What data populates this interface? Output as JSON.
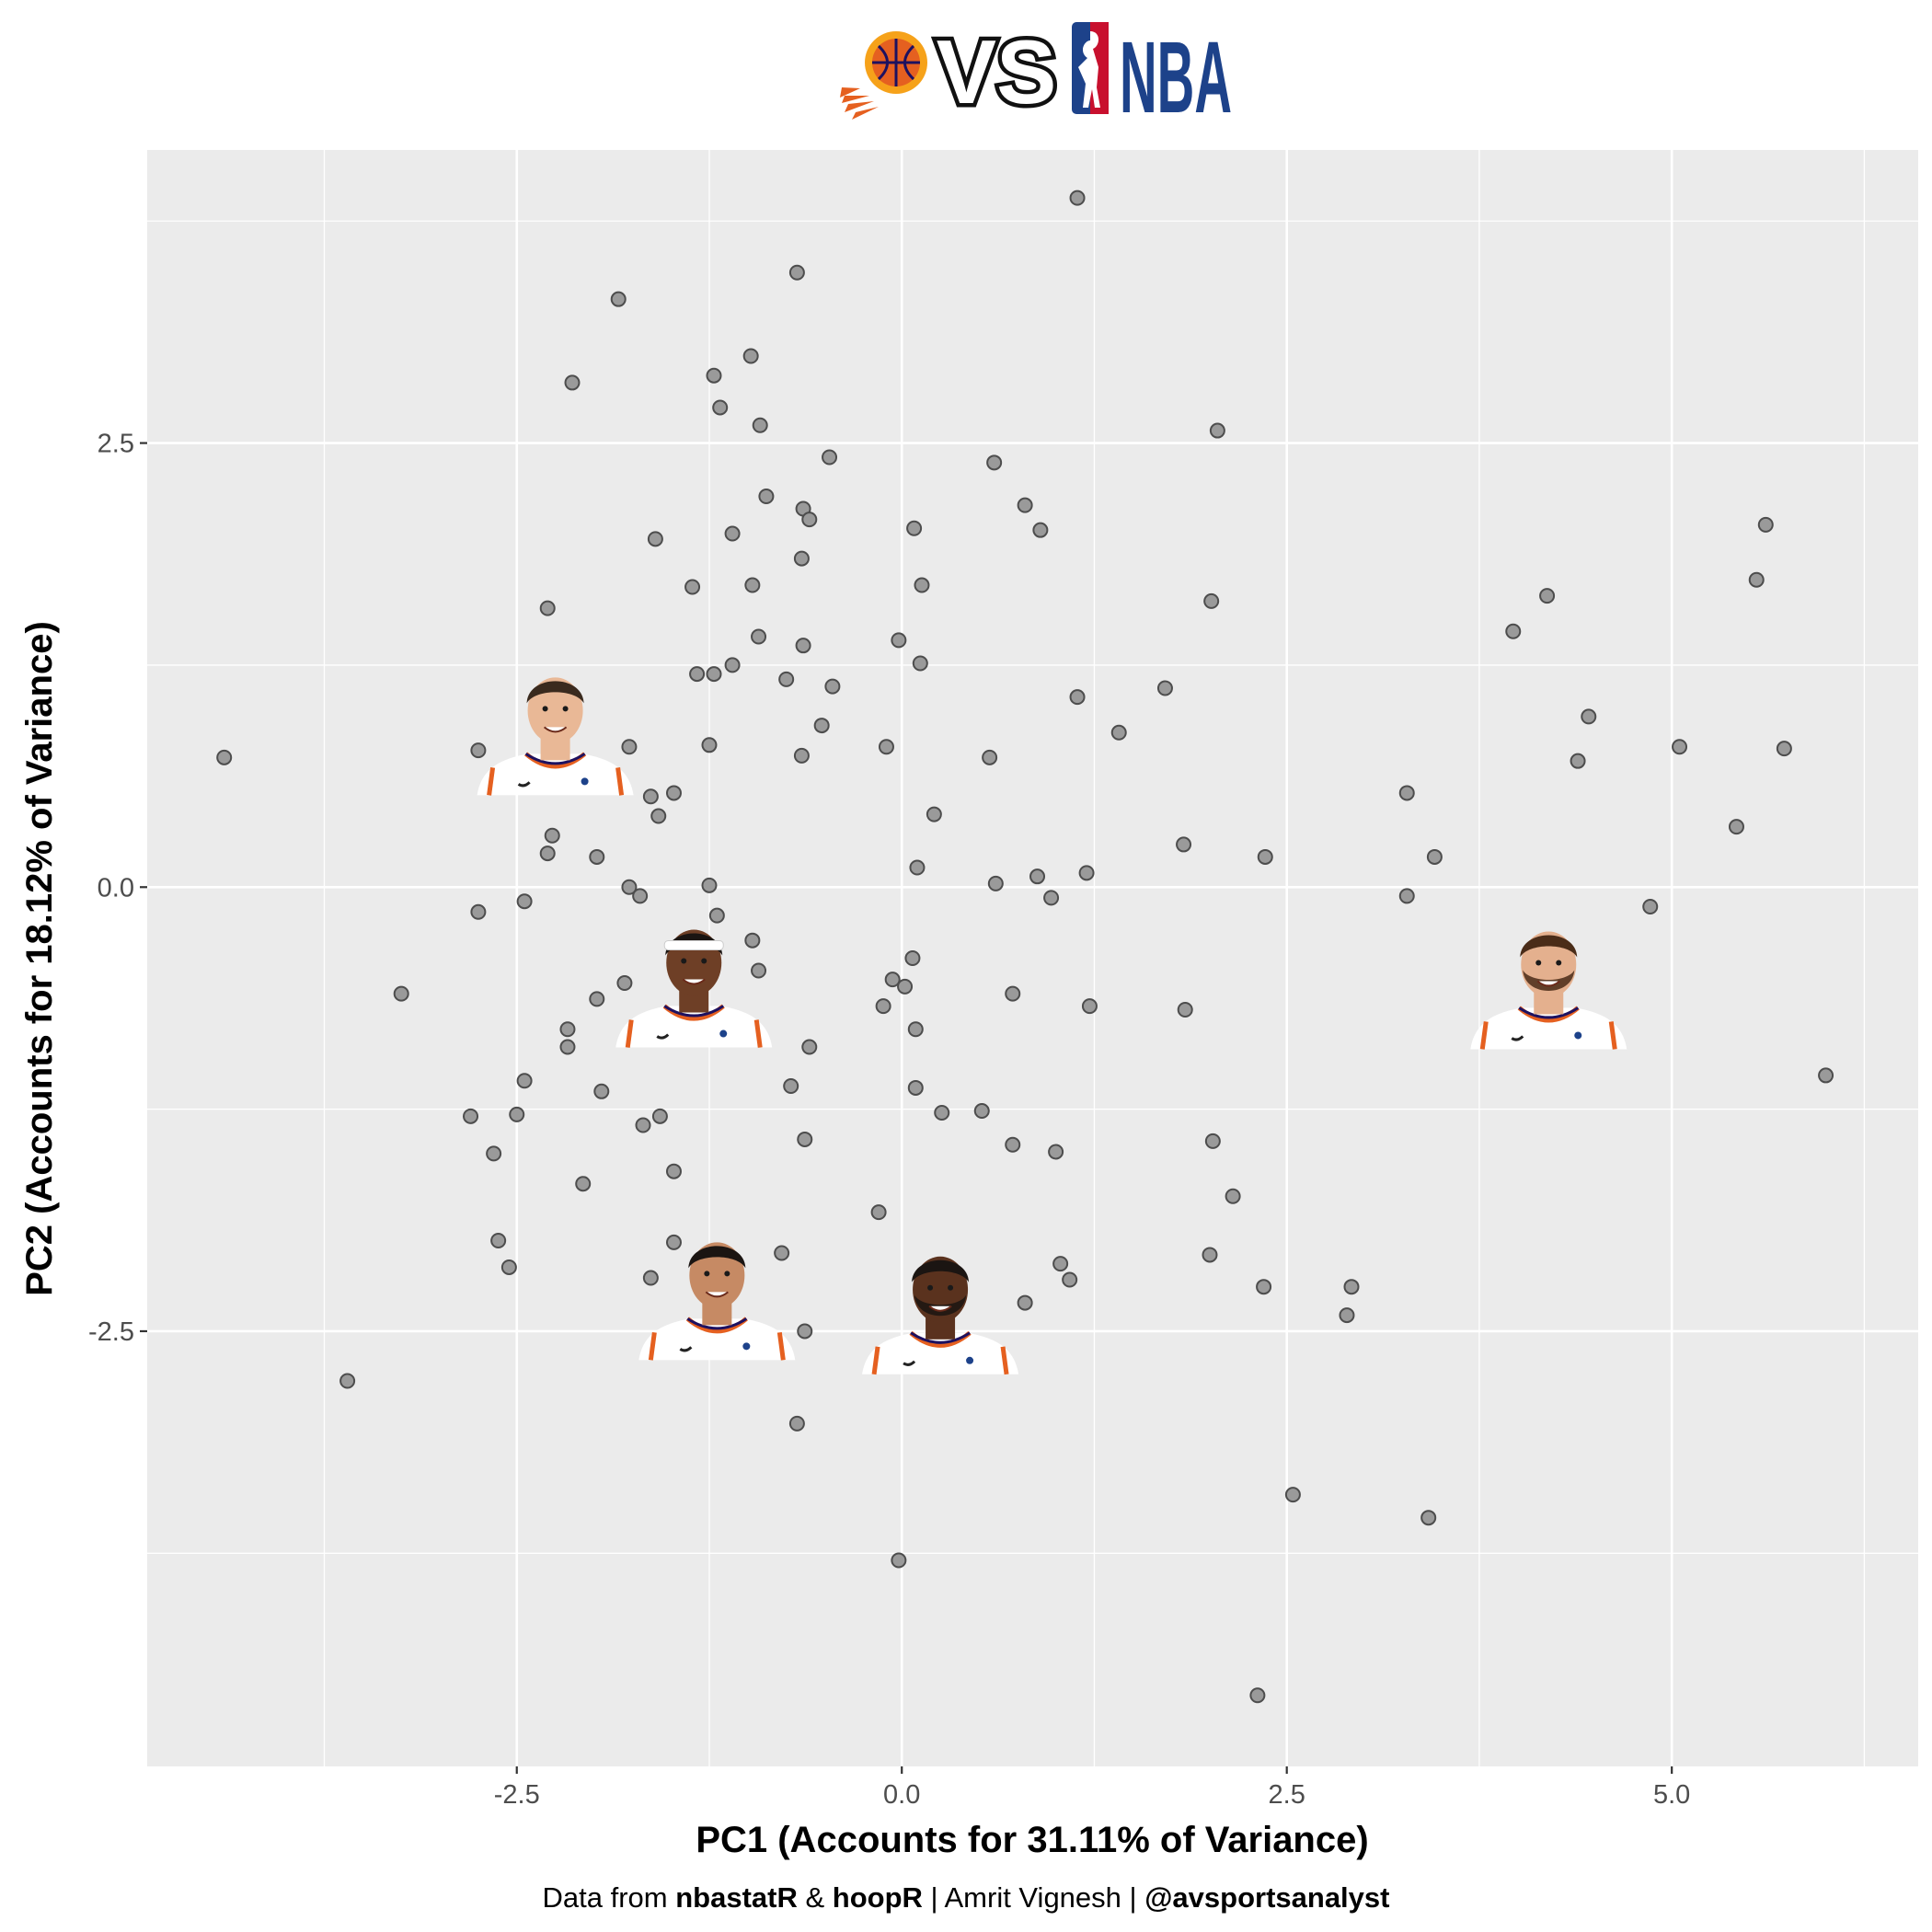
{
  "header": {
    "vs_text": "VS",
    "league_text": "NBA",
    "team_logo_icon": "phoenix-suns-basketball-icon",
    "league_logo_icon": "nba-logo-icon",
    "colors": {
      "suns_orange": "#e56020",
      "suns_purple": "#1d1160",
      "nba_blue": "#1d428a",
      "nba_red": "#c8102e"
    }
  },
  "caption": {
    "prefix": "Data from ",
    "source1": "nbastatR",
    "amp": " & ",
    "source2": "hoopR",
    "sep1": " | ",
    "author": "Amrit Vignesh",
    "sep2": " | ",
    "handle": "@avsportsanalyst"
  },
  "chart_data": {
    "type": "scatter",
    "xlabel": "PC1 (Accounts for 31.11% of Variance)",
    "ylabel": "PC2 (Accounts for 18.12% of Variance)",
    "xlim": [
      -4.9,
      6.6
    ],
    "ylim": [
      -4.95,
      4.15
    ],
    "x_ticks": [
      -2.5,
      0.0,
      2.5,
      5.0
    ],
    "x_tick_labels": [
      "-2.5",
      "0.0",
      "2.5",
      "5.0"
    ],
    "y_ticks": [
      -2.5,
      0.0,
      2.5
    ],
    "y_tick_labels": [
      "-2.5",
      "0.0",
      "2.5"
    ],
    "grid": true,
    "panel_background": "#ebebeb",
    "point_color": "#9a9a9a",
    "points": [
      [
        -4.4,
        0.73
      ],
      [
        -3.6,
        -2.78
      ],
      [
        -3.25,
        -0.6
      ],
      [
        -2.8,
        -1.29
      ],
      [
        -2.75,
        0.77
      ],
      [
        -2.75,
        -0.14
      ],
      [
        -2.65,
        -1.5
      ],
      [
        -2.62,
        -1.99
      ],
      [
        -2.55,
        -2.14
      ],
      [
        -2.5,
        -1.28
      ],
      [
        -2.45,
        -1.09
      ],
      [
        -2.45,
        -0.08
      ],
      [
        -2.3,
        1.57
      ],
      [
        -2.3,
        0.19
      ],
      [
        -2.27,
        0.29
      ],
      [
        -2.17,
        -0.8
      ],
      [
        -2.17,
        -0.9
      ],
      [
        -2.14,
        2.84
      ],
      [
        -2.07,
        -1.67
      ],
      [
        -1.98,
        0.17
      ],
      [
        -1.98,
        -0.63
      ],
      [
        -1.95,
        -1.15
      ],
      [
        -1.84,
        3.31
      ],
      [
        -1.8,
        -0.54
      ],
      [
        -1.77,
        0.79
      ],
      [
        -1.77,
        0.0
      ],
      [
        -1.7,
        -0.05
      ],
      [
        -1.68,
        -1.34
      ],
      [
        -1.63,
        0.51
      ],
      [
        -1.63,
        -2.2
      ],
      [
        -1.6,
        1.96
      ],
      [
        -1.58,
        0.4
      ],
      [
        -1.57,
        -1.29
      ],
      [
        -1.48,
        0.53
      ],
      [
        -1.48,
        -1.6
      ],
      [
        -1.48,
        -2.0
      ],
      [
        -1.36,
        1.69
      ],
      [
        -1.33,
        1.2
      ],
      [
        -1.25,
        0.8
      ],
      [
        -1.25,
        0.01
      ],
      [
        -1.22,
        2.88
      ],
      [
        -1.22,
        1.2
      ],
      [
        -1.2,
        -0.16
      ],
      [
        -1.18,
        2.7
      ],
      [
        -1.1,
        1.99
      ],
      [
        -1.1,
        1.25
      ],
      [
        -1.1,
        -2.12
      ],
      [
        -0.98,
        2.99
      ],
      [
        -0.97,
        1.7
      ],
      [
        -0.97,
        -0.3
      ],
      [
        -0.93,
        1.41
      ],
      [
        -0.93,
        -0.47
      ],
      [
        -0.92,
        2.6
      ],
      [
        -0.88,
        2.2
      ],
      [
        -0.78,
        -2.06
      ],
      [
        -0.75,
        1.17
      ],
      [
        -0.72,
        -1.12
      ],
      [
        -0.68,
        3.46
      ],
      [
        -0.68,
        -3.02
      ],
      [
        -0.65,
        0.74
      ],
      [
        -0.65,
        1.85
      ],
      [
        -0.64,
        2.13
      ],
      [
        -0.64,
        1.36
      ],
      [
        -0.63,
        -1.42
      ],
      [
        -0.63,
        -2.5
      ],
      [
        -0.6,
        2.07
      ],
      [
        -0.6,
        -0.9
      ],
      [
        -0.52,
        0.91
      ],
      [
        -0.47,
        2.42
      ],
      [
        -0.45,
        1.13
      ],
      [
        -0.15,
        -1.83
      ],
      [
        -0.12,
        -0.67
      ],
      [
        -0.1,
        0.79
      ],
      [
        -0.06,
        -0.52
      ],
      [
        -0.02,
        1.39
      ],
      [
        -0.02,
        -3.79
      ],
      [
        0.02,
        -0.56
      ],
      [
        0.07,
        -0.4
      ],
      [
        0.08,
        2.02
      ],
      [
        0.09,
        -1.13
      ],
      [
        0.09,
        -0.8
      ],
      [
        0.1,
        0.11
      ],
      [
        0.12,
        1.26
      ],
      [
        0.13,
        1.7
      ],
      [
        0.21,
        0.41
      ],
      [
        0.26,
        -1.27
      ],
      [
        0.52,
        -1.26
      ],
      [
        0.57,
        0.73
      ],
      [
        0.6,
        2.39
      ],
      [
        0.61,
        0.02
      ],
      [
        0.72,
        -1.45
      ],
      [
        0.72,
        -0.6
      ],
      [
        0.8,
        -2.34
      ],
      [
        0.8,
        2.15
      ],
      [
        0.88,
        0.06
      ],
      [
        0.9,
        2.01
      ],
      [
        0.97,
        -0.06
      ],
      [
        1.0,
        -1.49
      ],
      [
        1.03,
        -2.12
      ],
      [
        1.09,
        -2.21
      ],
      [
        1.14,
        1.07
      ],
      [
        1.14,
        3.88
      ],
      [
        1.2,
        0.08
      ],
      [
        1.22,
        -0.67
      ],
      [
        1.41,
        0.87
      ],
      [
        1.71,
        1.12
      ],
      [
        1.83,
        0.24
      ],
      [
        1.84,
        -0.69
      ],
      [
        2.0,
        -2.07
      ],
      [
        2.01,
        1.61
      ],
      [
        2.02,
        -1.43
      ],
      [
        2.05,
        2.57
      ],
      [
        2.15,
        -1.74
      ],
      [
        2.31,
        -4.55
      ],
      [
        2.35,
        -2.25
      ],
      [
        2.36,
        0.17
      ],
      [
        2.54,
        -3.42
      ],
      [
        2.89,
        -2.41
      ],
      [
        2.92,
        -2.25
      ],
      [
        3.28,
        0.53
      ],
      [
        3.28,
        -0.05
      ],
      [
        3.42,
        -3.55
      ],
      [
        3.46,
        0.17
      ],
      [
        3.97,
        1.44
      ],
      [
        4.19,
        1.64
      ],
      [
        4.39,
        0.71
      ],
      [
        4.46,
        0.96
      ],
      [
        4.86,
        -0.11
      ],
      [
        5.05,
        0.79
      ],
      [
        5.42,
        0.34
      ],
      [
        5.55,
        1.73
      ],
      [
        5.61,
        2.04
      ],
      [
        5.73,
        0.78
      ],
      [
        6.0,
        -1.06
      ]
    ],
    "player_markers": [
      {
        "name": "player-headshot-grayson",
        "x": -2.25,
        "y": 0.88,
        "headband": false,
        "beard": false,
        "skin": "#e9b896",
        "hair": "#3a2a1e"
      },
      {
        "name": "player-headshot-bradley",
        "x": -1.35,
        "y": -0.54,
        "headband": true,
        "beard": false,
        "skin": "#6e3f26",
        "hair": "#1b1512"
      },
      {
        "name": "player-headshot-nurkic",
        "x": 4.2,
        "y": -0.55,
        "headband": false,
        "beard": true,
        "skin": "#e4b08e",
        "hair": "#4a2c18"
      },
      {
        "name": "player-headshot-booker",
        "x": -1.2,
        "y": -2.3,
        "headband": false,
        "beard": false,
        "skin": "#c68a64",
        "hair": "#1b1512"
      },
      {
        "name": "player-headshot-durant",
        "x": 0.25,
        "y": -2.38,
        "headband": false,
        "beard": true,
        "skin": "#5a321e",
        "hair": "#1b1512"
      }
    ]
  }
}
